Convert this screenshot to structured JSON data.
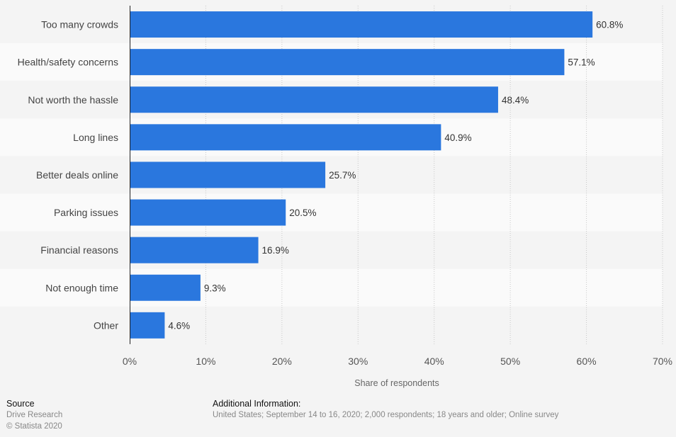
{
  "chart_data": {
    "type": "bar",
    "orientation": "horizontal",
    "categories": [
      "Too many crowds",
      "Health/safety concerns",
      "Not worth the hassle",
      "Long lines",
      "Better deals online",
      "Parking issues",
      "Financial reasons",
      "Not enough time",
      "Other"
    ],
    "values": [
      60.8,
      57.1,
      48.4,
      40.9,
      25.7,
      20.5,
      16.9,
      9.3,
      4.6
    ],
    "value_labels": [
      "60.8%",
      "57.1%",
      "48.4%",
      "40.9%",
      "25.7%",
      "20.5%",
      "16.9%",
      "9.3%",
      "4.6%"
    ],
    "xlim": [
      0,
      70
    ],
    "x_ticks": [
      0,
      10,
      20,
      30,
      40,
      50,
      60,
      70
    ],
    "x_tick_labels": [
      "0%",
      "10%",
      "20%",
      "30%",
      "40%",
      "50%",
      "60%",
      "70%"
    ],
    "xlabel": "Share of respondents",
    "grid": true,
    "bar_color": "#2a77de"
  },
  "footer": {
    "source_heading": "Source",
    "source_name": "Drive Research",
    "copyright": "© Statista 2020",
    "info_heading": "Additional Information:",
    "info_text": "United States; September 14 to 16, 2020; 2,000 respondents; 18 years and older; Online survey"
  }
}
